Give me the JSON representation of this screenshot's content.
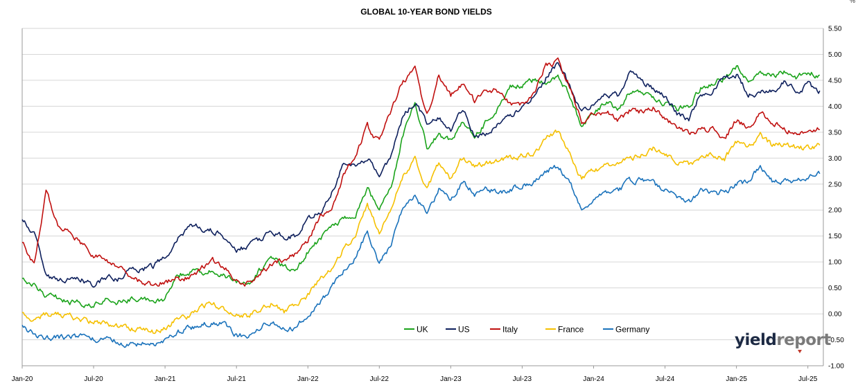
{
  "chart_data": {
    "type": "line",
    "title": "GLOBAL 10-YEAR BOND YIELDS",
    "unit": "%",
    "ylim": [
      -1.0,
      5.5
    ],
    "y_ticks": [
      "5.50",
      "5.00",
      "4.50",
      "4.00",
      "3.50",
      "3.00",
      "2.50",
      "2.00",
      "1.50",
      "1.00",
      "0.50",
      "0.00",
      "-0.50",
      "-1.00"
    ],
    "x_ticks": [
      "Jan-20",
      "Jul-20",
      "Jan-21",
      "Jul-21",
      "Jan-22",
      "Jul-22",
      "Jan-23",
      "Jul-23",
      "Jan-24",
      "Jul-24",
      "Jan-25",
      "Jul-25"
    ],
    "grid": "horizontal",
    "legend_position": "bottom-center",
    "x": [
      "2020-01",
      "2020-02",
      "2020-03",
      "2020-04",
      "2020-05",
      "2020-06",
      "2020-07",
      "2020-08",
      "2020-09",
      "2020-10",
      "2020-11",
      "2020-12",
      "2021-01",
      "2021-02",
      "2021-03",
      "2021-04",
      "2021-05",
      "2021-06",
      "2021-07",
      "2021-08",
      "2021-09",
      "2021-10",
      "2021-11",
      "2021-12",
      "2022-01",
      "2022-02",
      "2022-03",
      "2022-04",
      "2022-05",
      "2022-06",
      "2022-07",
      "2022-08",
      "2022-09",
      "2022-10",
      "2022-11",
      "2022-12",
      "2023-01",
      "2023-02",
      "2023-03",
      "2023-04",
      "2023-05",
      "2023-06",
      "2023-07",
      "2023-08",
      "2023-09",
      "2023-10",
      "2023-11",
      "2023-12",
      "2024-01",
      "2024-02",
      "2024-03",
      "2024-04",
      "2024-05",
      "2024-06",
      "2024-07",
      "2024-08",
      "2024-09",
      "2024-10",
      "2024-11",
      "2024-12",
      "2025-01",
      "2025-02",
      "2025-03",
      "2025-04",
      "2025-05",
      "2025-06",
      "2025-07",
      "2025-08"
    ],
    "series": [
      {
        "name": "UK",
        "color": "#1aa31a",
        "values": [
          0.72,
          0.55,
          0.35,
          0.31,
          0.22,
          0.2,
          0.15,
          0.25,
          0.22,
          0.28,
          0.32,
          0.25,
          0.3,
          0.75,
          0.8,
          0.8,
          0.82,
          0.75,
          0.62,
          0.55,
          0.85,
          1.05,
          0.95,
          0.85,
          1.2,
          1.45,
          1.65,
          1.85,
          1.9,
          2.45,
          2.0,
          2.5,
          3.45,
          4.1,
          3.2,
          3.45,
          3.35,
          3.7,
          3.4,
          3.7,
          4.0,
          4.4,
          4.4,
          4.5,
          4.45,
          4.6,
          4.2,
          3.6,
          3.85,
          4.1,
          3.95,
          4.25,
          4.3,
          4.2,
          4.05,
          3.95,
          4.0,
          4.35,
          4.45,
          4.55,
          4.75,
          4.5,
          4.65,
          4.6,
          4.65,
          4.55,
          4.65,
          4.6
        ]
      },
      {
        "name": "US",
        "color": "#0d1f5c",
        "values": [
          1.85,
          1.55,
          0.75,
          0.65,
          0.68,
          0.66,
          0.55,
          0.7,
          0.68,
          0.85,
          0.85,
          0.92,
          1.1,
          1.4,
          1.72,
          1.65,
          1.6,
          1.48,
          1.25,
          1.3,
          1.45,
          1.55,
          1.5,
          1.5,
          1.85,
          1.95,
          2.35,
          2.9,
          2.85,
          3.0,
          2.7,
          3.05,
          3.8,
          4.1,
          3.7,
          3.8,
          3.5,
          3.95,
          3.45,
          3.45,
          3.65,
          3.8,
          3.95,
          4.2,
          4.55,
          4.85,
          4.4,
          3.85,
          4.05,
          4.25,
          4.2,
          4.65,
          4.5,
          4.35,
          4.2,
          3.85,
          3.75,
          4.25,
          4.3,
          4.55,
          4.6,
          4.25,
          4.25,
          4.3,
          4.45,
          4.3,
          4.4,
          4.3
        ]
      },
      {
        "name": "Italy",
        "color": "#c0100f",
        "values": [
          1.4,
          0.95,
          2.35,
          1.75,
          1.55,
          1.35,
          1.1,
          1.05,
          0.9,
          0.75,
          0.62,
          0.55,
          0.62,
          0.68,
          0.7,
          0.85,
          1.05,
          0.9,
          0.62,
          0.58,
          0.8,
          0.95,
          1.05,
          1.15,
          1.4,
          1.85,
          1.95,
          2.7,
          3.1,
          3.6,
          3.3,
          3.9,
          4.5,
          4.7,
          3.8,
          4.6,
          4.2,
          4.45,
          4.1,
          4.3,
          4.3,
          4.05,
          4.05,
          4.25,
          4.8,
          4.85,
          4.4,
          3.7,
          3.85,
          3.9,
          3.75,
          3.9,
          3.9,
          4.0,
          3.75,
          3.6,
          3.5,
          3.55,
          3.55,
          3.35,
          3.75,
          3.55,
          3.9,
          3.7,
          3.55,
          3.5,
          3.55,
          3.55
        ]
      },
      {
        "name": "France",
        "color": "#f5c000",
        "values": [
          0.05,
          -0.1,
          0.0,
          0.0,
          -0.05,
          -0.1,
          -0.15,
          -0.18,
          -0.22,
          -0.28,
          -0.32,
          -0.35,
          -0.3,
          -0.1,
          -0.05,
          0.15,
          0.2,
          0.1,
          0.0,
          -0.05,
          0.1,
          0.2,
          0.05,
          0.15,
          0.35,
          0.65,
          0.85,
          1.25,
          1.5,
          2.1,
          1.55,
          2.05,
          2.65,
          3.0,
          2.4,
          2.9,
          2.6,
          3.0,
          2.85,
          2.9,
          2.95,
          3.0,
          3.05,
          3.1,
          3.4,
          3.5,
          3.1,
          2.6,
          2.75,
          2.85,
          2.85,
          3.0,
          3.05,
          3.2,
          3.1,
          2.95,
          2.9,
          3.0,
          3.05,
          3.0,
          3.3,
          3.2,
          3.45,
          3.25,
          3.25,
          3.2,
          3.2,
          3.25
        ]
      },
      {
        "name": "Germany",
        "color": "#1a72bb",
        "values": [
          -0.2,
          -0.4,
          -0.48,
          -0.45,
          -0.45,
          -0.45,
          -0.5,
          -0.45,
          -0.52,
          -0.6,
          -0.58,
          -0.57,
          -0.52,
          -0.35,
          -0.28,
          -0.2,
          -0.15,
          -0.22,
          -0.4,
          -0.45,
          -0.25,
          -0.15,
          -0.3,
          -0.25,
          -0.05,
          0.2,
          0.5,
          0.85,
          1.1,
          1.6,
          0.95,
          1.35,
          2.1,
          2.3,
          1.9,
          2.4,
          2.2,
          2.55,
          2.3,
          2.4,
          2.35,
          2.4,
          2.5,
          2.55,
          2.75,
          2.85,
          2.55,
          2.0,
          2.25,
          2.35,
          2.35,
          2.55,
          2.6,
          2.5,
          2.4,
          2.25,
          2.15,
          2.35,
          2.3,
          2.35,
          2.5,
          2.55,
          2.85,
          2.55,
          2.55,
          2.55,
          2.65,
          2.7
        ]
      }
    ]
  },
  "logo": {
    "part1": "yield",
    "part2": "report"
  }
}
